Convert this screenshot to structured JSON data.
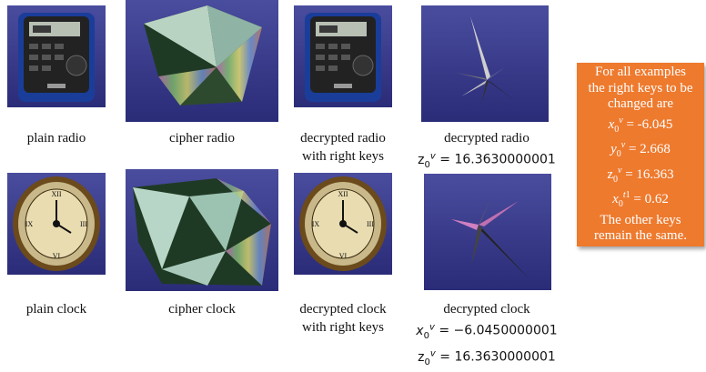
{
  "row1": {
    "captions": [
      {
        "line1": "plain radio",
        "line2": ""
      },
      {
        "line1": "cipher radio",
        "line2": ""
      },
      {
        "line1": "decrypted radio",
        "line2": "with right keys"
      },
      {
        "line1": "decrypted radio",
        "line2": "= 16.3630000001"
      }
    ]
  },
  "row2": {
    "captions": [
      {
        "line1": "plain clock",
        "line2": ""
      },
      {
        "line1": "cipher clock",
        "line2": ""
      },
      {
        "line1": "decrypted clock",
        "line2": "with right keys"
      },
      {
        "line1": "decrypted clock",
        "line2": "= −6.0450000001",
        "line3": "= 16.3630000001"
      }
    ]
  },
  "note": {
    "line1": "For all examples",
    "line2": "the right keys to be",
    "line3": "changed are",
    "x0v": "= -6.045",
    "y0v": "= 2.668",
    "z0v": "= 16.363",
    "x0t1": "= 0.62",
    "line8": "The other keys",
    "line9": "remain the same."
  },
  "colors": {
    "tile_bg": "#3d3f90",
    "note_bg": "#ee7a2e"
  }
}
